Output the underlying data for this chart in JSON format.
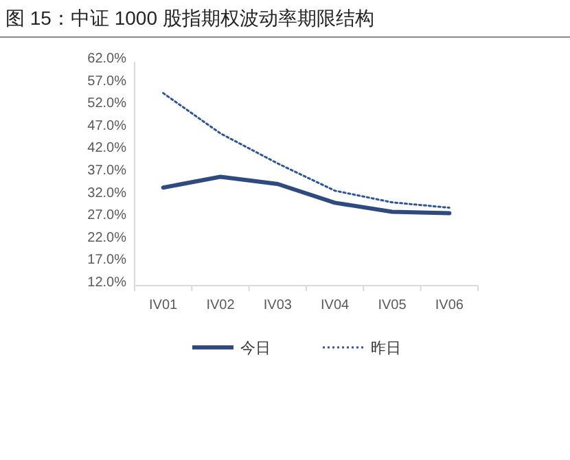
{
  "chart_data": {
    "type": "line",
    "title": "图 15：中证 1000 股指期权波动率期限结构",
    "categories": [
      "IV01",
      "IV02",
      "IV03",
      "IV04",
      "IV05",
      "IV06"
    ],
    "series": [
      {
        "name": "今日",
        "color": "#2e4a7e",
        "line_style": "solid",
        "values": [
          33.9,
          36.3,
          34.7,
          30.5,
          28.5,
          28.2
        ]
      },
      {
        "name": "昨日",
        "color": "#2f5597",
        "line_style": "dotted",
        "values": [
          55.0,
          46.0,
          39.3,
          33.2,
          30.6,
          29.4
        ]
      }
    ],
    "ylim": [
      12,
      62
    ],
    "yticks": [
      {
        "value": 12,
        "label": "12.0%"
      },
      {
        "value": 17,
        "label": "17.0%"
      },
      {
        "value": 22,
        "label": "22.0%"
      },
      {
        "value": 27,
        "label": "27.0%"
      },
      {
        "value": 32,
        "label": "32.0%"
      },
      {
        "value": 37,
        "label": "37.0%"
      },
      {
        "value": 42,
        "label": "42.0%"
      },
      {
        "value": 47,
        "label": "47.0%"
      },
      {
        "value": 52,
        "label": "52.0%"
      },
      {
        "value": 57,
        "label": "57.0%"
      },
      {
        "value": 62,
        "label": "62.0%"
      }
    ],
    "grid": false,
    "legend": "bottom",
    "marker": "none"
  }
}
